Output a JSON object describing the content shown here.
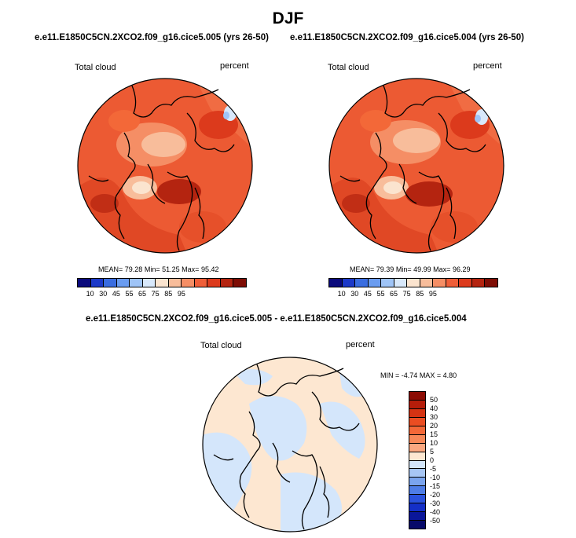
{
  "title": "DJF",
  "panels": [
    {
      "title": "e.e11.E1850C5CN.2XCO2.f09_g16.cice5.005 (yrs 26-50)",
      "variable": "Total cloud",
      "units": "percent",
      "stats": {
        "mean_label": "MEAN=",
        "mean": "79.28",
        "min_label": "Min=",
        "min": "51.25",
        "max_label": "Max=",
        "max": "95.42"
      }
    },
    {
      "title": "e.e11.E1850C5CN.2XCO2.f09_g16.cice5.004 (yrs 26-50)",
      "variable": "Total cloud",
      "units": "percent",
      "stats": {
        "mean_label": "MEAN=",
        "mean": "79.39",
        "min_label": "Min=",
        "min": "49.99",
        "max_label": "Max=",
        "max": "96.29"
      }
    },
    {
      "title": "e.e11.E1850C5CN.2XCO2.f09_g16.cice5.005 - e.e11.E1850C5CN.2XCO2.f09_g16.cice5.004",
      "variable": "Total cloud",
      "units": "percent",
      "stats": {
        "min_label": "MIN =",
        "min": "-4.74",
        "max_label": "MAX =",
        "max": "4.80"
      }
    }
  ],
  "chart_data": [
    {
      "type": "heatmap",
      "projection": "north polar stereographic",
      "title": "e.e11.E1850C5CN.2XCO2.f09_g16.cice5.005 (yrs 26-50)",
      "field": "Total cloud",
      "units": "percent",
      "mean": 79.28,
      "min": 51.25,
      "max": 95.42,
      "colorbar": {
        "levels": [
          "10",
          "30",
          "45",
          "55",
          "65",
          "75",
          "85",
          "95"
        ],
        "colors": [
          "#0a0a7c",
          "#1c39c8",
          "#3a6de0",
          "#6a9cf0",
          "#9fc4f7",
          "#d8e8fb",
          "#fbe4cf",
          "#f8bd9b",
          "#f58e65",
          "#ef5e38",
          "#dc3a1c",
          "#b42410",
          "#7e0d05"
        ]
      }
    },
    {
      "type": "heatmap",
      "projection": "north polar stereographic",
      "title": "e.e11.E1850C5CN.2XCO2.f09_g16.cice5.004 (yrs 26-50)",
      "field": "Total cloud",
      "units": "percent",
      "mean": 79.39,
      "min": 49.99,
      "max": 96.29,
      "colorbar": {
        "levels": [
          "10",
          "30",
          "45",
          "55",
          "65",
          "75",
          "85",
          "95"
        ],
        "colors": [
          "#0a0a7c",
          "#1c39c8",
          "#3a6de0",
          "#6a9cf0",
          "#9fc4f7",
          "#d8e8fb",
          "#fbe4cf",
          "#f8bd9b",
          "#f58e65",
          "#ef5e38",
          "#dc3a1c",
          "#b42410",
          "#7e0d05"
        ]
      }
    },
    {
      "type": "heatmap",
      "projection": "north polar stereographic",
      "title": "e.e11.E1850C5CN.2XCO2.f09_g16.cice5.005 - e.e11.E1850C5CN.2XCO2.f09_g16.cice5.004",
      "field": "Total cloud",
      "units": "percent",
      "min": -4.74,
      "max": 4.8,
      "colorbar": {
        "levels": [
          "50",
          "40",
          "30",
          "20",
          "15",
          "10",
          "5",
          "0",
          "-5",
          "-10",
          "-15",
          "-20",
          "-30",
          "-40",
          "-50"
        ],
        "colors": [
          "#8c0c04",
          "#b51d0a",
          "#d43313",
          "#ea4d22",
          "#f36838",
          "#f78858",
          "#faa780",
          "#fde7d1",
          "#d4e6fb",
          "#a7c6f5",
          "#7aa4ee",
          "#4e7de6",
          "#2a52dd",
          "#142fc7",
          "#0a169a",
          "#070a6a"
        ]
      }
    }
  ]
}
